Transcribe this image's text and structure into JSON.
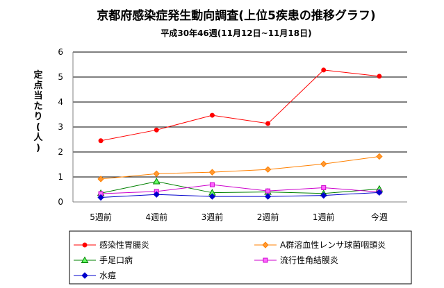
{
  "chart_data": {
    "type": "line",
    "title": "京都府感染症発生動向調査(上位5疾患の推移グラフ)",
    "subtitle": "平成30年46週(11月12日~11月18日)",
    "ylabel": "定点当たり(人)",
    "xlabel": "",
    "ylim": [
      0,
      6
    ],
    "yticks": [
      "0",
      "1",
      "2",
      "3",
      "4",
      "5",
      "6"
    ],
    "categories": [
      "5週前",
      "4週前",
      "3週前",
      "2週前",
      "1週前",
      "今週"
    ],
    "grid": true,
    "legend_position": "bottom",
    "series": [
      {
        "name": "感染性胃腸炎",
        "color": "#ff0000",
        "marker": "circle",
        "values": [
          2.45,
          2.88,
          3.47,
          3.14,
          5.28,
          5.03
        ]
      },
      {
        "name": "A群溶血性レンサ球菌咽頭炎",
        "color": "#ff8000",
        "marker": "diamond",
        "values": [
          0.92,
          1.13,
          1.19,
          1.3,
          1.52,
          1.82
        ]
      },
      {
        "name": "手足口病",
        "color": "#008000",
        "marker": "triangle",
        "values": [
          0.35,
          0.82,
          0.37,
          0.4,
          0.34,
          0.52
        ]
      },
      {
        "name": "流行性角結膜炎",
        "color": "#cc00cc",
        "marker": "square",
        "values": [
          0.33,
          0.42,
          0.69,
          0.44,
          0.57,
          0.4
        ]
      },
      {
        "name": "水痘",
        "color": "#0000cc",
        "marker": "diamond",
        "values": [
          0.18,
          0.3,
          0.22,
          0.22,
          0.26,
          0.38
        ]
      }
    ]
  }
}
